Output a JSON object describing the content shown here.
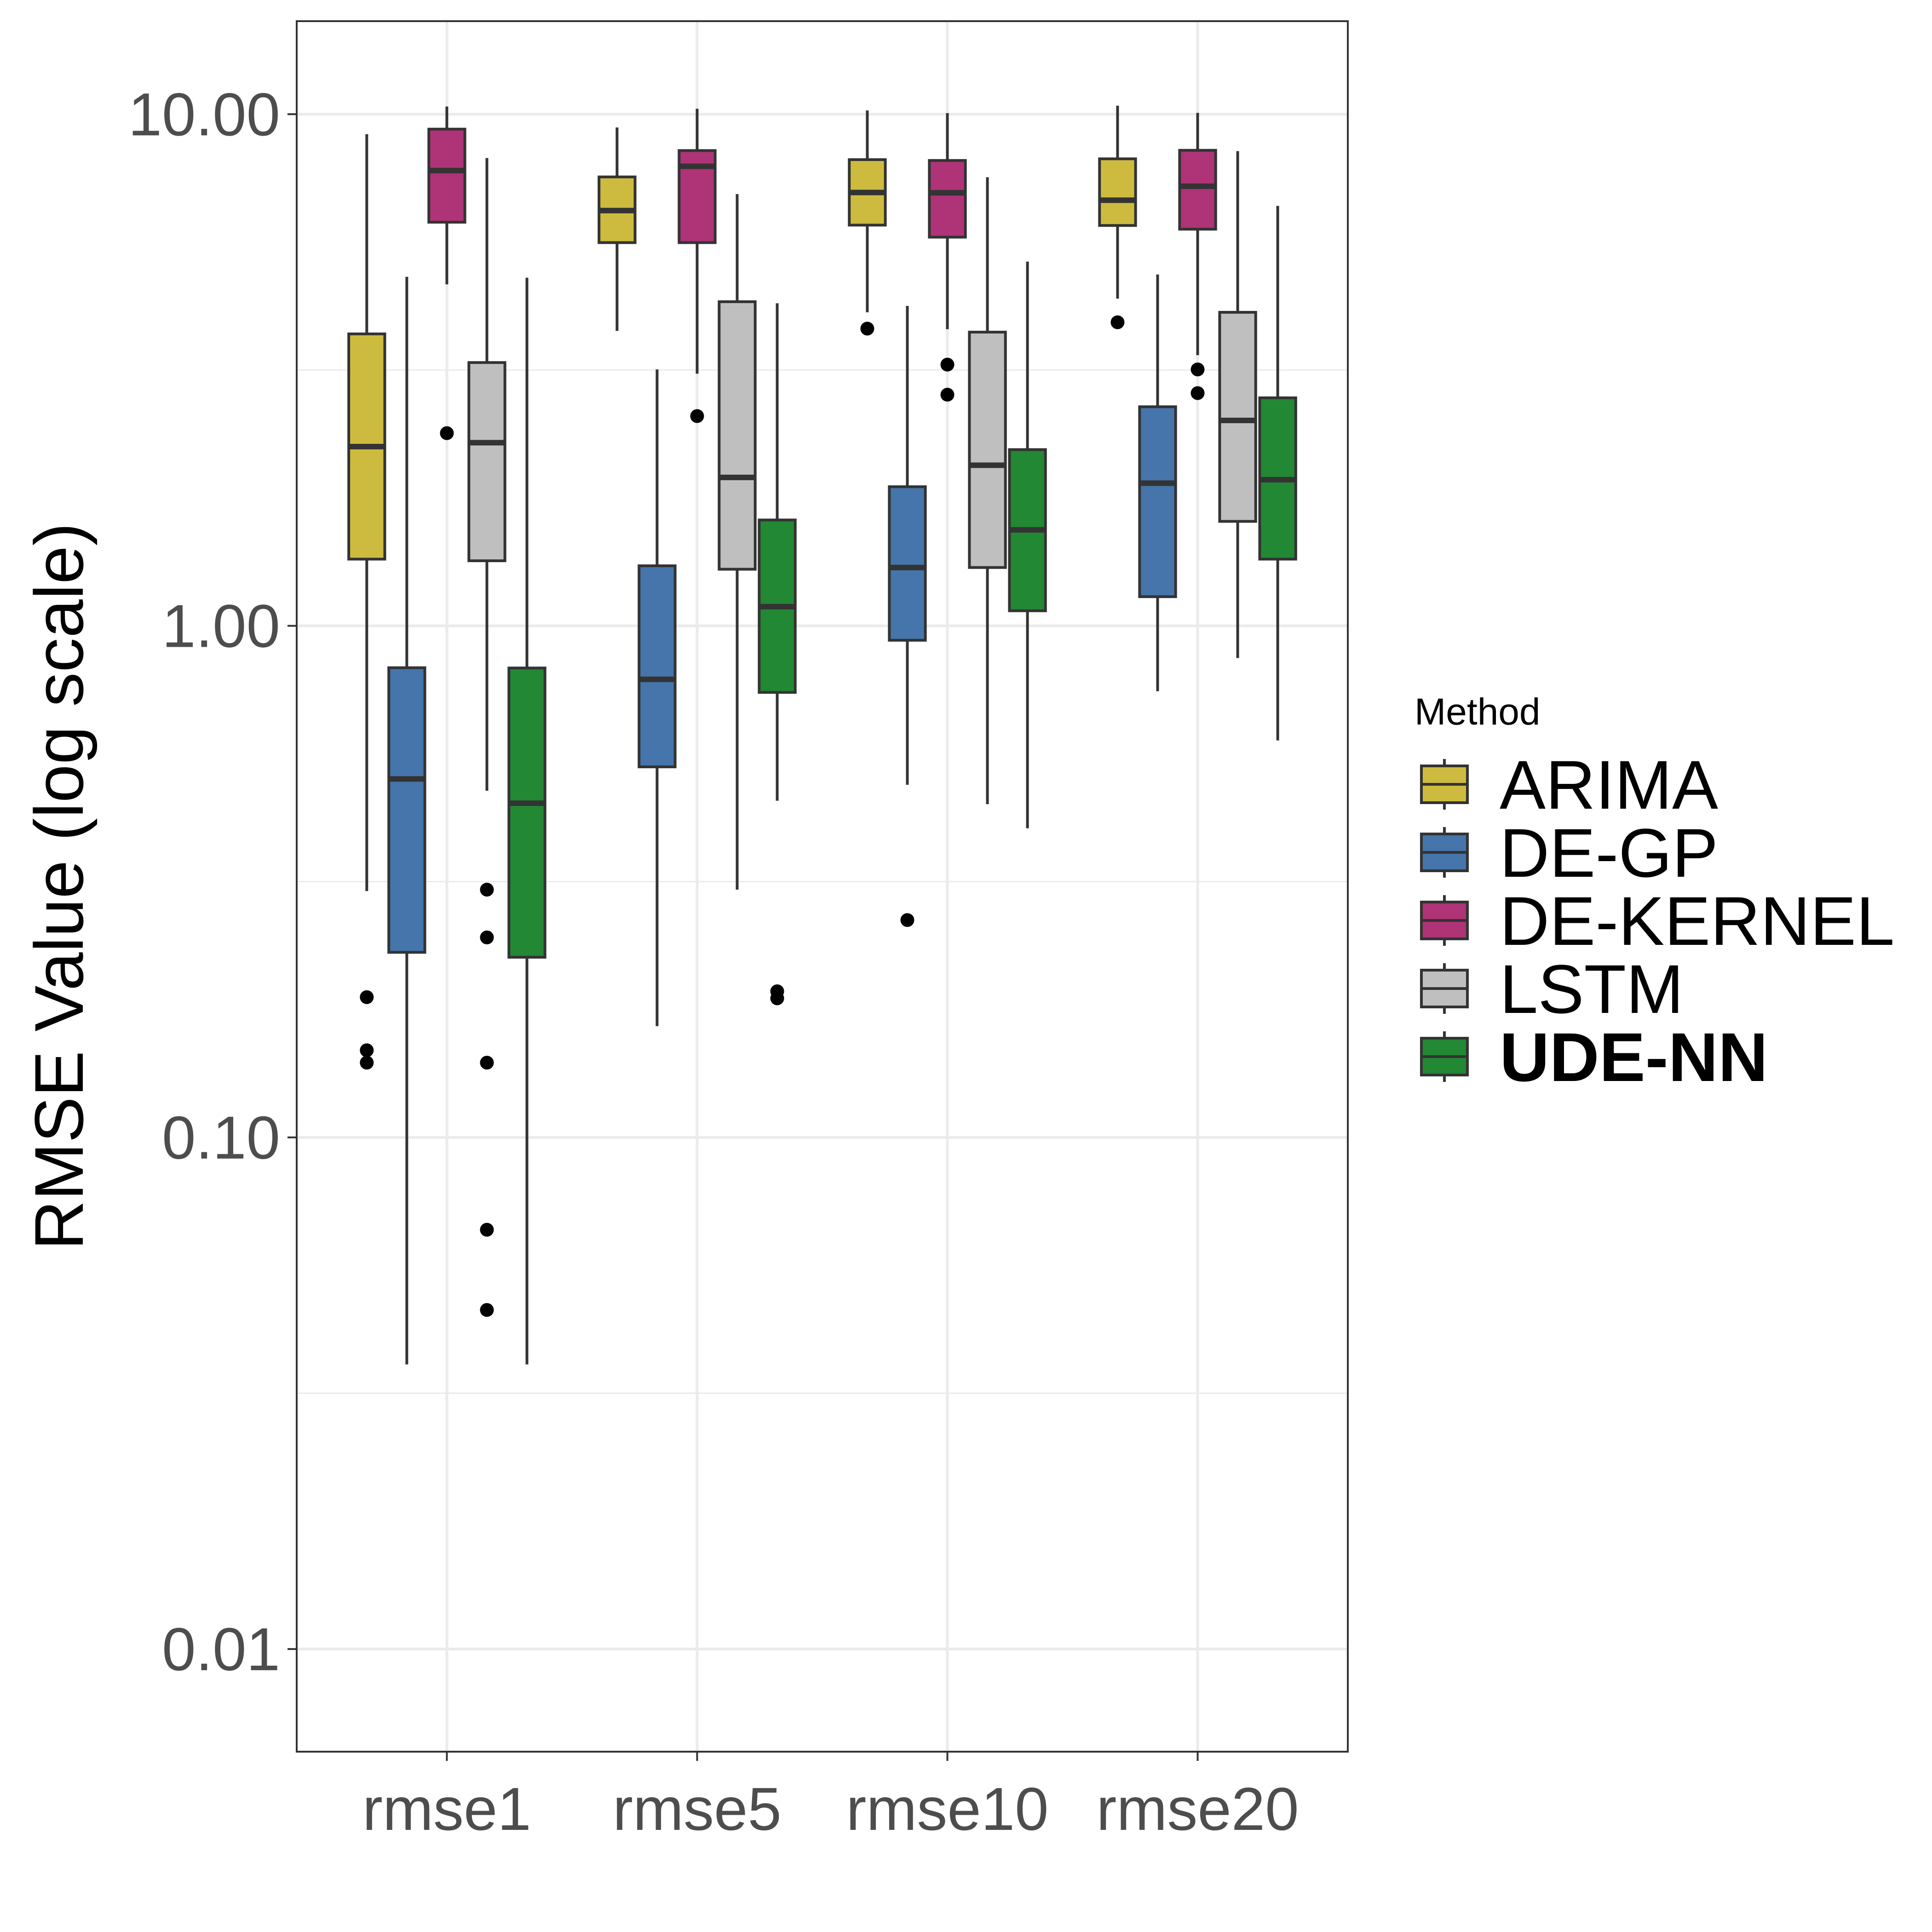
{
  "chart_data": {
    "type": "box",
    "ylabel": "RMSE Value (log scale)",
    "xlabel": "",
    "y_scale": "log10",
    "ylim": [
      0.0063,
      15.2
    ],
    "y_ticks": [
      0.01,
      0.1,
      1,
      10
    ],
    "y_tick_labels": [
      "0.01",
      "0.10",
      "1.00",
      "10.00"
    ],
    "grid": true,
    "categories": [
      "rmse1",
      "rmse5",
      "rmse10",
      "rmse20"
    ],
    "legend": {
      "title": "Method",
      "position": "right"
    },
    "series": [
      {
        "name": "ARIMA",
        "color": "#cdbb3f",
        "bold": false,
        "boxes": [
          {
            "whisker_low": 0.303,
            "q1": 1.35,
            "median": 2.24,
            "q3": 3.72,
            "whisker_high": 9.14,
            "outliers": [
              0.188,
              0.148,
              0.14
            ]
          },
          {
            "whisker_low": 3.77,
            "q1": 5.61,
            "median": 6.48,
            "q3": 7.54,
            "whisker_high": 9.42,
            "outliers": []
          },
          {
            "whisker_low": 4.1,
            "q1": 6.07,
            "median": 7.03,
            "q3": 8.15,
            "whisker_high": 10.17,
            "outliers": [
              3.81
            ]
          },
          {
            "whisker_low": 4.36,
            "q1": 6.06,
            "median": 6.79,
            "q3": 8.18,
            "whisker_high": 10.39,
            "outliers": [
              3.92
            ]
          }
        ]
      },
      {
        "name": "DE-GP",
        "color": "#4575aa",
        "bold": false,
        "boxes": [
          {
            "whisker_low": 0.036,
            "q1": 0.23,
            "median": 0.502,
            "q3": 0.828,
            "whisker_high": 4.81,
            "outliers": []
          },
          {
            "whisker_low": 0.165,
            "q1": 0.53,
            "median": 0.786,
            "q3": 1.31,
            "whisker_high": 3.17,
            "outliers": []
          },
          {
            "whisker_low": 0.489,
            "q1": 0.937,
            "median": 1.3,
            "q3": 1.87,
            "whisker_high": 4.22,
            "outliers": [
              0.266
            ]
          },
          {
            "whisker_low": 0.745,
            "q1": 1.14,
            "median": 1.9,
            "q3": 2.68,
            "whisker_high": 4.86,
            "outliers": []
          }
        ]
      },
      {
        "name": "DE-KERNEL",
        "color": "#ae3377",
        "bold": false,
        "boxes": [
          {
            "whisker_low": 4.65,
            "q1": 6.15,
            "median": 7.76,
            "q3": 9.35,
            "whisker_high": 10.35,
            "outliers": [
              2.38
            ]
          },
          {
            "whisker_low": 3.11,
            "q1": 5.61,
            "median": 7.91,
            "q3": 8.49,
            "whisker_high": 10.25,
            "outliers": [
              2.57
            ]
          },
          {
            "whisker_low": 3.8,
            "q1": 5.75,
            "median": 7.02,
            "q3": 8.12,
            "whisker_high": 10.05,
            "outliers": [
              3.24,
              2.83
            ]
          },
          {
            "whisker_low": 3.38,
            "q1": 5.96,
            "median": 7.23,
            "q3": 8.5,
            "whisker_high": 10.06,
            "outliers": [
              3.17,
              2.85
            ]
          }
        ]
      },
      {
        "name": "LSTM",
        "color": "#bfbfbf",
        "bold": false,
        "boxes": [
          {
            "whisker_low": 0.476,
            "q1": 1.34,
            "median": 2.28,
            "q3": 3.27,
            "whisker_high": 8.21,
            "outliers": [
              0.305,
              0.246,
              0.14,
              0.066,
              0.046
            ]
          },
          {
            "whisker_low": 0.305,
            "q1": 1.29,
            "median": 1.95,
            "q3": 4.3,
            "whisker_high": 6.98,
            "outliers": []
          },
          {
            "whisker_low": 0.448,
            "q1": 1.3,
            "median": 2.06,
            "q3": 3.75,
            "whisker_high": 7.53,
            "outliers": []
          },
          {
            "whisker_low": 0.865,
            "q1": 1.6,
            "median": 2.52,
            "q3": 4.1,
            "whisker_high": 8.47,
            "outliers": []
          }
        ]
      },
      {
        "name": "UDE-NN",
        "color": "#228833",
        "bold": true,
        "boxes": [
          {
            "whisker_low": 0.036,
            "q1": 0.225,
            "median": 0.45,
            "q3": 0.827,
            "whisker_high": 4.79,
            "outliers": []
          },
          {
            "whisker_low": 0.455,
            "q1": 0.741,
            "median": 1.09,
            "q3": 1.61,
            "whisker_high": 4.27,
            "outliers": [
              0.193,
              0.187
            ]
          },
          {
            "whisker_low": 0.402,
            "q1": 1.07,
            "median": 1.54,
            "q3": 2.21,
            "whisker_high": 5.15,
            "outliers": []
          },
          {
            "whisker_low": 0.597,
            "q1": 1.35,
            "median": 1.93,
            "q3": 2.79,
            "whisker_high": 6.62,
            "outliers": []
          }
        ]
      }
    ]
  }
}
